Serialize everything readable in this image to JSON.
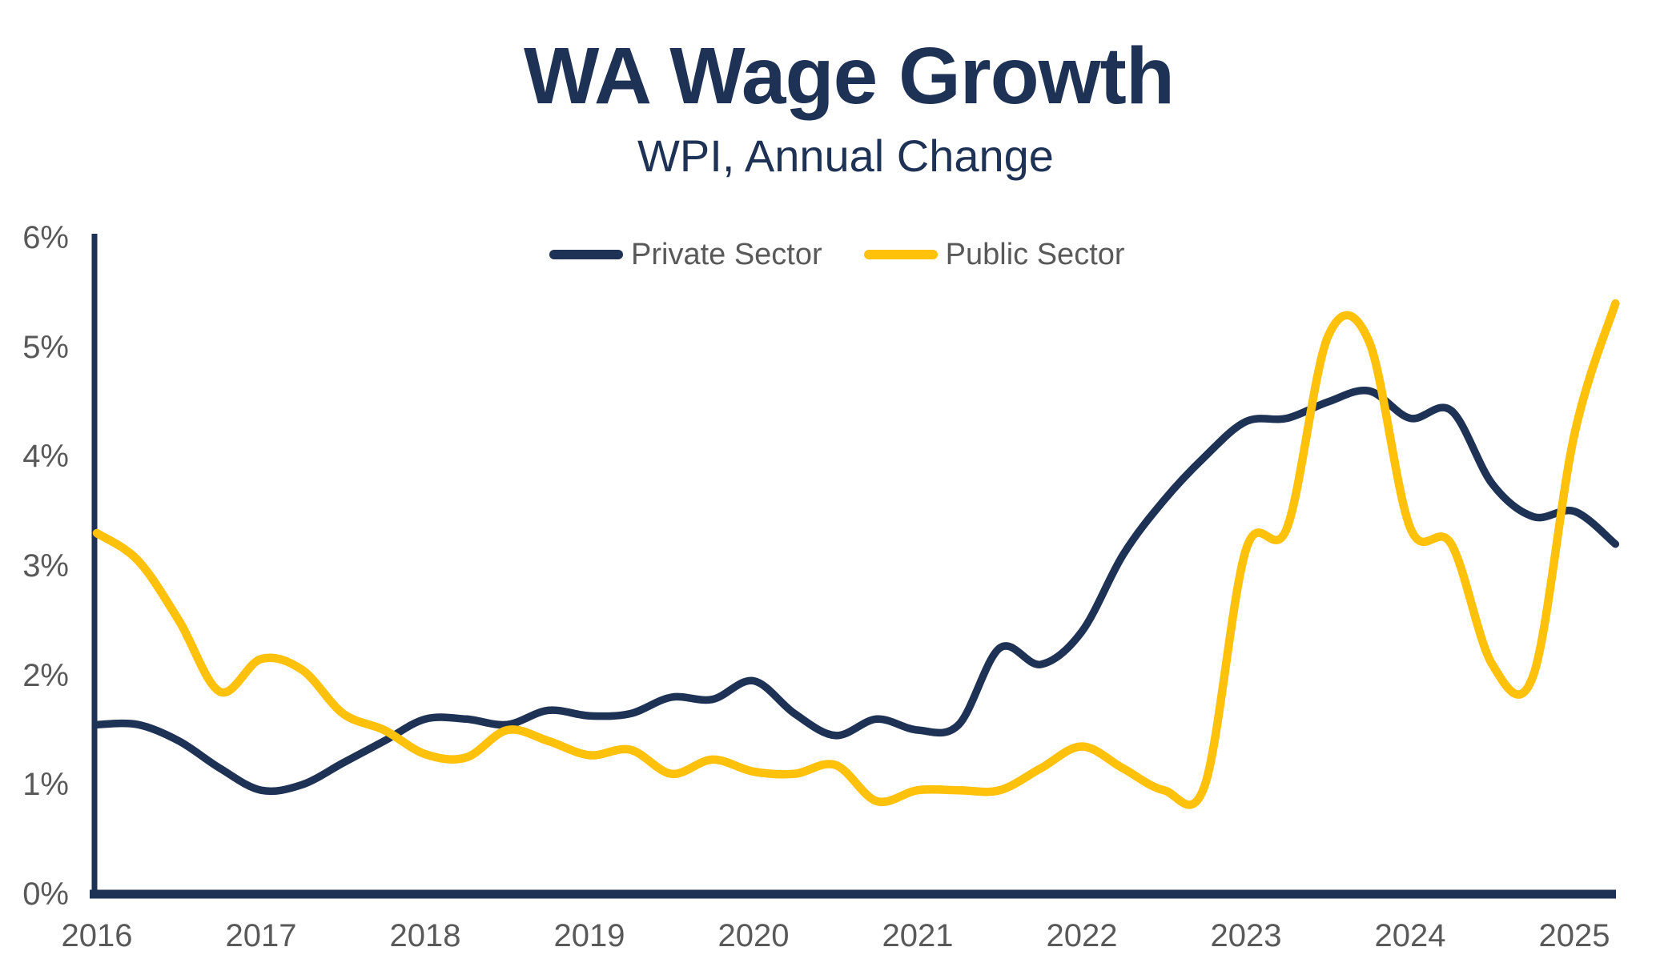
{
  "chart": {
    "title": "WA Wage Growth",
    "subtitle": "WPI, Annual Change"
  },
  "chart_data": {
    "type": "line",
    "title": "WA Wage Growth",
    "subtitle": "WPI, Annual Change",
    "grid": false,
    "background": "#FFFFFF",
    "axis_color": "#1E3255",
    "tick_label_color": "#595959",
    "legend_position": "top-center-inside",
    "ylim": [
      0,
      6
    ],
    "y_tick_labels": [
      "0%",
      "1%",
      "2%",
      "3%",
      "4%",
      "5%",
      "6%"
    ],
    "x_tick_labels": [
      "2016",
      "2017",
      "2018",
      "2019",
      "2020",
      "2021",
      "2022",
      "2023",
      "2024",
      "2025"
    ],
    "x_unit": "quarterly",
    "x_start": "2016-Q1",
    "x_end": "2025-Q2",
    "series": [
      {
        "name": "Private Sector",
        "color": "#1E3255",
        "values": [
          1.55,
          1.55,
          1.4,
          1.15,
          0.95,
          1.0,
          1.2,
          1.4,
          1.6,
          1.6,
          1.55,
          1.68,
          1.63,
          1.65,
          1.8,
          1.78,
          1.95,
          1.65,
          1.45,
          1.6,
          1.5,
          1.55,
          2.25,
          2.1,
          2.4,
          3.1,
          3.6,
          4.0,
          4.32,
          4.35,
          4.5,
          4.6,
          4.35,
          4.42,
          3.75,
          3.45,
          3.5,
          3.2
        ]
      },
      {
        "name": "Public Sector",
        "color": "#FFC10A",
        "values": [
          3.3,
          3.05,
          2.5,
          1.85,
          2.15,
          2.05,
          1.65,
          1.5,
          1.28,
          1.25,
          1.5,
          1.4,
          1.27,
          1.32,
          1.1,
          1.23,
          1.12,
          1.1,
          1.18,
          0.85,
          0.95,
          0.95,
          0.95,
          1.15,
          1.35,
          1.15,
          0.95,
          1.0,
          3.15,
          3.35,
          5.1,
          5.05,
          3.35,
          3.2,
          2.1,
          2.0,
          4.2,
          5.4
        ]
      }
    ]
  }
}
